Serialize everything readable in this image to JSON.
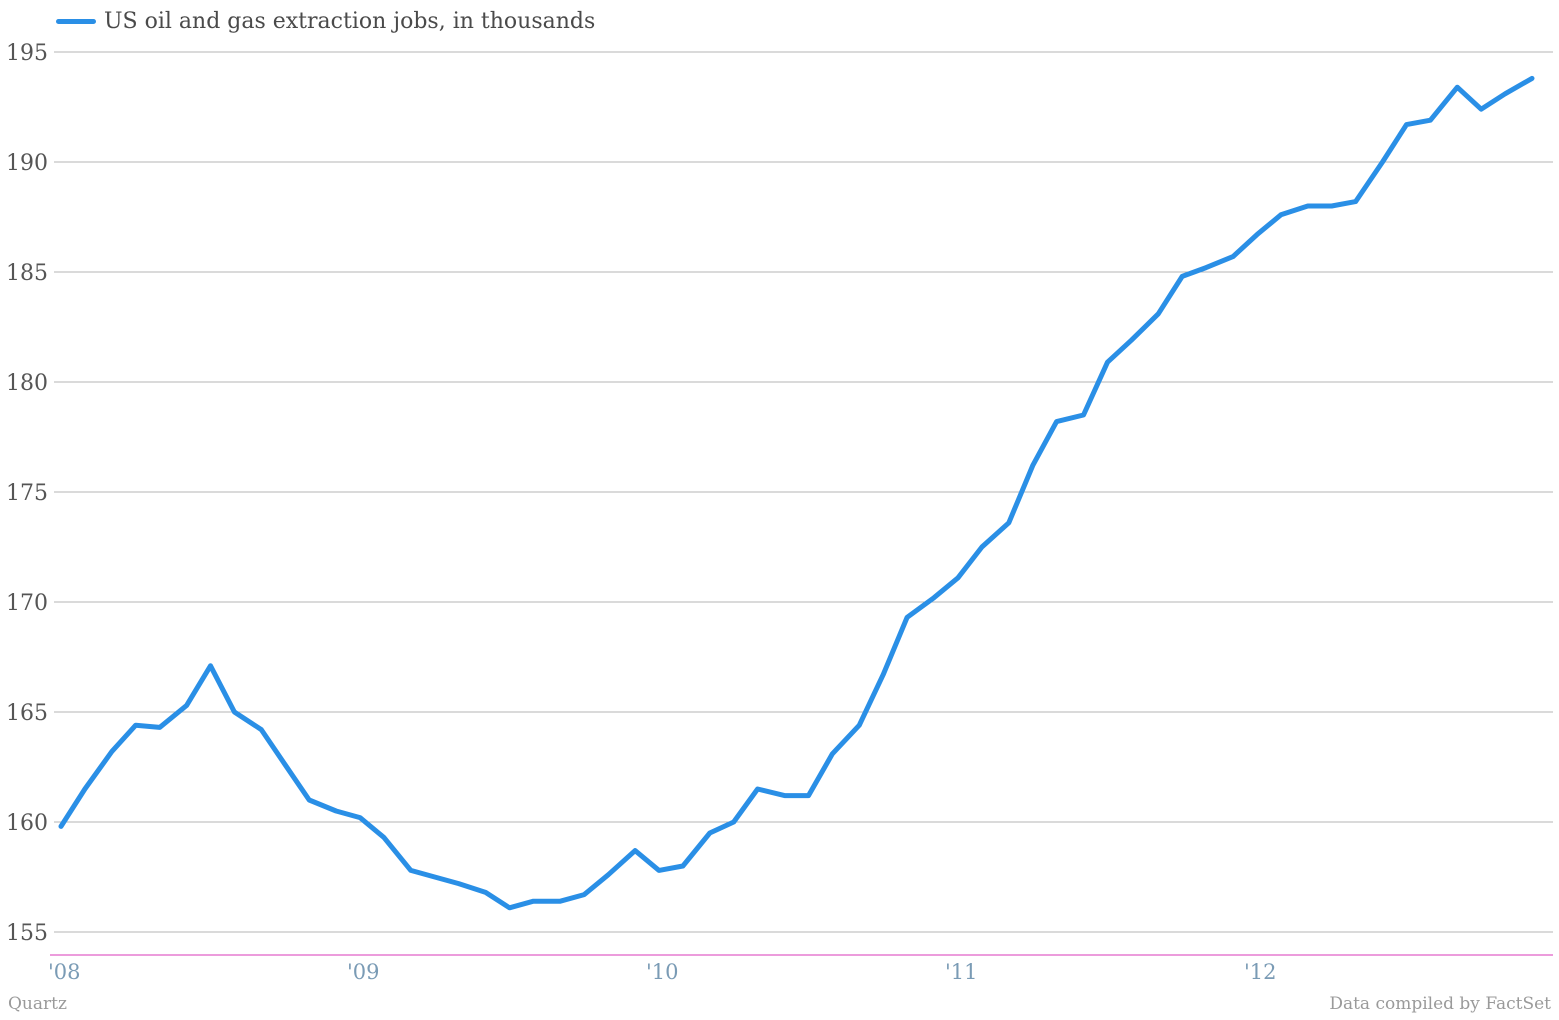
{
  "chart_data": {
    "type": "line",
    "title": "",
    "xlabel": "",
    "ylabel": "",
    "ylim": [
      155,
      195
    ],
    "yticks": [
      155,
      160,
      165,
      170,
      175,
      180,
      185,
      190,
      195
    ],
    "xticks": [
      {
        "label": "'08",
        "x": 2008
      },
      {
        "label": "'09",
        "x": 2009
      },
      {
        "label": "'10",
        "x": 2010
      },
      {
        "label": "'11",
        "x": 2011
      },
      {
        "label": "'12",
        "x": 2012
      }
    ],
    "xlim": [
      2008,
      2012.95
    ],
    "grid": true,
    "legend_position": "top-left",
    "series": [
      {
        "name": "US oil and gas extraction jobs, in thousands",
        "color": "#2a8fe6",
        "x": [
          2008.0,
          2008.08,
          2008.17,
          2008.25,
          2008.33,
          2008.42,
          2008.5,
          2008.58,
          2008.67,
          2008.75,
          2008.83,
          2008.92,
          2009.0,
          2009.08,
          2009.17,
          2009.25,
          2009.33,
          2009.42,
          2009.5,
          2009.58,
          2009.67,
          2009.75,
          2009.83,
          2009.92,
          2010.0,
          2010.08,
          2010.17,
          2010.25,
          2010.33,
          2010.42,
          2010.5,
          2010.58,
          2010.67,
          2010.75,
          2010.83,
          2010.92,
          2011.0,
          2011.08,
          2011.17,
          2011.25,
          2011.33,
          2011.42,
          2011.5,
          2011.58,
          2011.67,
          2011.75,
          2011.83,
          2011.92,
          2012.0,
          2012.08,
          2012.17,
          2012.25,
          2012.33,
          2012.42,
          2012.5,
          2012.58,
          2012.67,
          2012.75,
          2012.83,
          2012.92
        ],
        "values": [
          159.8,
          161.5,
          163.2,
          164.4,
          164.3,
          165.3,
          167.1,
          165.0,
          164.2,
          162.6,
          161.0,
          160.5,
          160.2,
          159.3,
          157.8,
          157.5,
          157.2,
          156.8,
          156.1,
          156.4,
          156.4,
          156.7,
          157.6,
          158.7,
          157.8,
          158.0,
          159.5,
          160.0,
          161.5,
          161.2,
          161.2,
          163.1,
          164.4,
          166.7,
          169.3,
          170.2,
          171.1,
          172.5,
          173.6,
          176.2,
          178.2,
          178.5,
          180.9,
          181.9,
          183.1,
          184.8,
          185.2,
          185.7,
          186.7,
          187.6,
          188.0,
          188.0,
          188.2,
          190.0,
          191.7,
          191.9,
          193.4,
          192.4,
          193.1,
          193.8
        ]
      }
    ]
  },
  "legend": {
    "label": "US oil and gas extraction jobs, in thousands",
    "color": "#2a8fe6"
  },
  "footer": {
    "source_left": "Quartz",
    "source_right": "Data compiled by FactSet"
  },
  "colors": {
    "gridline": "#b5b5b5",
    "baseline": "#e060c8",
    "line": "#2a8fe6"
  }
}
